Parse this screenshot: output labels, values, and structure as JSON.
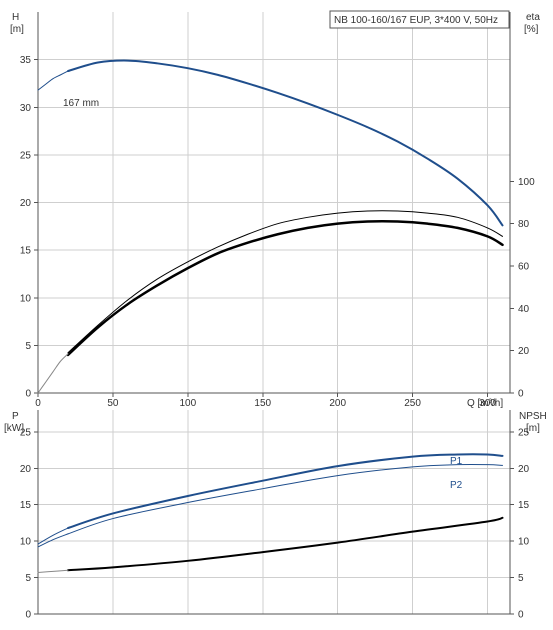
{
  "title": "NB 100-160/167 EUP, 3*400 V, 50Hz",
  "colors": {
    "blue": "#1f4e8c",
    "black": "#000000",
    "grid": "#cfcfcf"
  },
  "chart_data": [
    {
      "type": "line",
      "name_label": "167 mm",
      "xlabel": "Q [m³/h]",
      "ylabel_left_1": "H",
      "ylabel_left_2": "[m]",
      "ylabel_right_1": "eta",
      "ylabel_right_2": "[%]",
      "xlim": [
        0,
        315
      ],
      "ylim_left": [
        0,
        40
      ],
      "ylim_right": [
        0,
        180
      ],
      "xticks": [
        0,
        50,
        100,
        150,
        200,
        250,
        300
      ],
      "yticks_left": [
        0,
        5,
        10,
        15,
        20,
        25,
        30,
        35
      ],
      "yticks_right": [
        0,
        20,
        40,
        60,
        80,
        100
      ],
      "grid": true,
      "series": [
        {
          "key": "H",
          "axis": "left",
          "color": "#1f4e8c",
          "width": 2,
          "x": [
            20,
            40,
            60,
            80,
            100,
            120,
            140,
            160,
            180,
            200,
            220,
            240,
            260,
            280,
            300,
            310
          ],
          "y": [
            33.8,
            34.7,
            34.9,
            34.6,
            34.1,
            33.4,
            32.5,
            31.5,
            30.4,
            29.2,
            27.9,
            26.4,
            24.6,
            22.5,
            19.7,
            17.6
          ]
        },
        {
          "key": "H_ext",
          "axis": "left",
          "color": "#1f4e8c",
          "width": 1,
          "x": [
            0,
            5,
            10,
            15,
            20
          ],
          "y": [
            31.8,
            32.4,
            33.0,
            33.4,
            33.8
          ]
        },
        {
          "key": "eta_thin",
          "axis": "right",
          "color": "#000000",
          "width": 1,
          "x": [
            20,
            40,
            60,
            80,
            100,
            120,
            140,
            160,
            180,
            200,
            220,
            240,
            260,
            280,
            300,
            310
          ],
          "y": [
            19,
            32,
            44,
            54,
            62,
            69,
            75,
            80,
            83,
            85,
            86,
            86,
            85,
            83,
            78,
            74
          ]
        },
        {
          "key": "eta_thick",
          "axis": "right",
          "color": "#000000",
          "width": 2.5,
          "x": [
            20,
            40,
            60,
            80,
            100,
            120,
            140,
            160,
            180,
            200,
            220,
            240,
            260,
            280,
            300,
            310
          ],
          "y": [
            18,
            31,
            42,
            51,
            59,
            66,
            71,
            75,
            78,
            80,
            81,
            81,
            80,
            78,
            74,
            70
          ]
        },
        {
          "key": "eta_ext",
          "axis": "right",
          "color": "#888888",
          "width": 1,
          "x": [
            0,
            5,
            10,
            15,
            20
          ],
          "y": [
            0,
            5,
            10,
            15,
            18.5
          ]
        }
      ]
    },
    {
      "type": "line",
      "ylabel_left_1": "P",
      "ylabel_left_2": "[kW]",
      "ylabel_right_1": "NPSH",
      "ylabel_right_2": "[m]",
      "xlim": [
        0,
        315
      ],
      "ylim_left": [
        0,
        28
      ],
      "ylim_right": [
        0,
        28
      ],
      "yticks_left": [
        0,
        5,
        10,
        15,
        20,
        25
      ],
      "yticks_right": [
        0,
        5,
        10,
        15,
        20,
        25
      ],
      "grid": true,
      "series": [
        {
          "key": "P1",
          "name": "P1",
          "axis": "left",
          "color": "#1f4e8c",
          "width": 2,
          "x": [
            20,
            50,
            100,
            150,
            200,
            250,
            280,
            300,
            310
          ],
          "y": [
            11.8,
            13.8,
            16.2,
            18.3,
            20.3,
            21.6,
            21.9,
            21.9,
            21.7
          ]
        },
        {
          "key": "P2",
          "name": "P2",
          "axis": "left",
          "color": "#1f4e8c",
          "width": 1,
          "x": [
            20,
            50,
            100,
            150,
            200,
            250,
            280,
            300,
            310
          ],
          "y": [
            11.0,
            13.1,
            15.3,
            17.2,
            19.0,
            20.2,
            20.5,
            20.5,
            20.4
          ]
        },
        {
          "key": "P1_ext",
          "axis": "left",
          "color": "#1f4e8c",
          "width": 1,
          "x": [
            0,
            10,
            20
          ],
          "y": [
            9.6,
            10.8,
            11.8
          ]
        },
        {
          "key": "P2_ext",
          "axis": "left",
          "color": "#1f4e8c",
          "width": 1,
          "x": [
            0,
            10,
            20
          ],
          "y": [
            9.2,
            10.2,
            11.0
          ]
        },
        {
          "key": "NPSH",
          "axis": "right",
          "color": "#000000",
          "width": 2,
          "x": [
            20,
            50,
            100,
            150,
            200,
            250,
            300,
            310
          ],
          "y": [
            6.0,
            6.4,
            7.3,
            8.5,
            9.8,
            11.3,
            12.7,
            13.2
          ]
        },
        {
          "key": "NPSH_ext",
          "axis": "right",
          "color": "#888888",
          "width": 1,
          "x": [
            0,
            10,
            20
          ],
          "y": [
            5.7,
            5.85,
            6.0
          ]
        }
      ]
    }
  ]
}
